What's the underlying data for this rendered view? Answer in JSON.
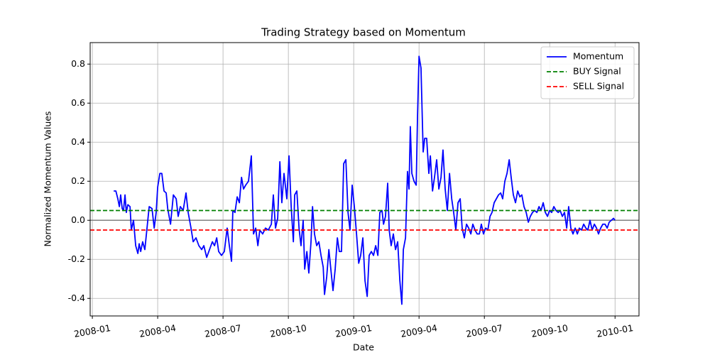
{
  "chart_data": {
    "type": "line",
    "title": "Trading Strategy based on Momentum",
    "xlabel": "Date",
    "ylabel": "Normalized Momentum Values",
    "xlim": [
      -0.1,
      25.1
    ],
    "xticks": [
      {
        "value": 0,
        "label": "2008-01"
      },
      {
        "value": 3,
        "label": "2008-04"
      },
      {
        "value": 6,
        "label": "2008-07"
      },
      {
        "value": 9,
        "label": "2008-10"
      },
      {
        "value": 12,
        "label": "2009-01"
      },
      {
        "value": 15,
        "label": "2009-04"
      },
      {
        "value": 18,
        "label": "2009-07"
      },
      {
        "value": 21,
        "label": "2009-10"
      },
      {
        "value": 24,
        "label": "2010-01"
      }
    ],
    "ylim": [
      -0.49,
      0.91
    ],
    "yticks": [
      -0.4,
      -0.2,
      {
        "value": 0,
        "label": "0.0"
      },
      0.2,
      0.4,
      0.6,
      0.8
    ],
    "grid": true,
    "legend": "upper right",
    "x": [
      0.98,
      1.08,
      1.17,
      1.24,
      1.3,
      1.37,
      1.43,
      1.5,
      1.56,
      1.63,
      1.73,
      1.79,
      1.89,
      1.99,
      2.09,
      2.15,
      2.22,
      2.31,
      2.41,
      2.51,
      2.61,
      2.74,
      2.84,
      2.93,
      3.0,
      3.1,
      3.19,
      3.29,
      3.39,
      3.46,
      3.59,
      3.72,
      3.85,
      3.94,
      4.04,
      4.17,
      4.3,
      4.4,
      4.53,
      4.63,
      4.76,
      4.89,
      5.02,
      5.12,
      5.25,
      5.38,
      5.51,
      5.61,
      5.71,
      5.8,
      5.93,
      6.06,
      6.19,
      6.29,
      6.39,
      6.45,
      6.55,
      6.65,
      6.75,
      6.85,
      6.94,
      7.04,
      7.17,
      7.3,
      7.4,
      7.5,
      7.6,
      7.69,
      7.82,
      7.95,
      8.08,
      8.22,
      8.31,
      8.41,
      8.51,
      8.61,
      8.7,
      8.8,
      8.93,
      9.03,
      9.13,
      9.23,
      9.29,
      9.39,
      9.49,
      9.58,
      9.68,
      9.75,
      9.85,
      9.94,
      10.04,
      10.11,
      10.2,
      10.3,
      10.4,
      10.5,
      10.6,
      10.66,
      10.76,
      10.86,
      10.95,
      11.05,
      11.15,
      11.25,
      11.34,
      11.44,
      11.54,
      11.64,
      11.74,
      11.83,
      11.93,
      12.03,
      12.13,
      12.23,
      12.32,
      12.42,
      12.52,
      12.62,
      12.71,
      12.81,
      12.91,
      13.01,
      13.11,
      13.2,
      13.3,
      13.37,
      13.46,
      13.56,
      13.63,
      13.72,
      13.82,
      13.92,
      14.02,
      14.12,
      14.21,
      14.28,
      14.38,
      14.47,
      14.54,
      14.6,
      14.67,
      14.77,
      14.87,
      14.93,
      15.0,
      15.09,
      15.19,
      15.26,
      15.35,
      15.45,
      15.52,
      15.62,
      15.71,
      15.81,
      15.91,
      16.01,
      16.1,
      16.2,
      16.3,
      16.4,
      16.5,
      16.59,
      16.69,
      16.79,
      16.89,
      16.98,
      17.08,
      17.18,
      17.28,
      17.38,
      17.47,
      17.57,
      17.67,
      17.77,
      17.86,
      17.96,
      18.06,
      18.16,
      18.26,
      18.35,
      18.45,
      18.55,
      18.65,
      18.75,
      18.84,
      18.94,
      19.04,
      19.14,
      19.23,
      19.33,
      19.43,
      19.53,
      19.63,
      19.72,
      19.82,
      19.92,
      20.02,
      20.11,
      20.21,
      20.31,
      20.41,
      20.51,
      20.6,
      20.7,
      20.8,
      20.9,
      20.99,
      21.09,
      21.19,
      21.29,
      21.39,
      21.48,
      21.58,
      21.68,
      21.78,
      21.87,
      21.97,
      22.07,
      22.17,
      22.27,
      22.36,
      22.46,
      22.56,
      22.66,
      22.75,
      22.85,
      22.95,
      23.05,
      23.15,
      23.24,
      23.34,
      23.44,
      23.54,
      23.64,
      23.73,
      23.83,
      23.93,
      24.0
    ],
    "series": [
      {
        "name": "Momentum",
        "color": "#0000ff",
        "values": [
          0.15,
          0.15,
          0.11,
          0.07,
          0.13,
          0.06,
          0.05,
          0.13,
          0.04,
          0.08,
          0.07,
          -0.05,
          0.0,
          -0.13,
          -0.17,
          -0.12,
          -0.16,
          -0.11,
          -0.15,
          -0.04,
          0.07,
          0.06,
          -0.04,
          0.04,
          0.17,
          0.24,
          0.24,
          0.15,
          0.14,
          0.06,
          -0.02,
          0.13,
          0.11,
          0.02,
          0.07,
          0.05,
          0.14,
          0.04,
          -0.04,
          -0.11,
          -0.09,
          -0.13,
          -0.15,
          -0.13,
          -0.19,
          -0.15,
          -0.11,
          -0.13,
          -0.09,
          -0.16,
          -0.18,
          -0.16,
          -0.04,
          -0.13,
          -0.21,
          0.05,
          0.04,
          0.12,
          0.09,
          0.22,
          0.16,
          0.18,
          0.2,
          0.33,
          -0.07,
          -0.04,
          -0.13,
          -0.05,
          -0.07,
          -0.04,
          -0.05,
          -0.02,
          0.13,
          -0.04,
          0.01,
          0.3,
          0.09,
          0.24,
          0.11,
          0.33,
          0.07,
          -0.11,
          0.13,
          0.15,
          -0.04,
          -0.13,
          0.0,
          -0.25,
          -0.16,
          -0.27,
          -0.11,
          0.07,
          -0.07,
          -0.13,
          -0.11,
          -0.18,
          -0.24,
          -0.38,
          -0.29,
          -0.15,
          -0.25,
          -0.36,
          -0.25,
          -0.09,
          -0.16,
          -0.16,
          0.29,
          0.31,
          0.04,
          -0.05,
          0.18,
          0.07,
          -0.07,
          -0.22,
          -0.18,
          -0.09,
          -0.31,
          -0.39,
          -0.18,
          -0.16,
          -0.18,
          -0.13,
          -0.18,
          0.04,
          0.05,
          -0.02,
          0.02,
          0.19,
          -0.05,
          -0.13,
          -0.07,
          -0.15,
          -0.11,
          -0.31,
          -0.43,
          -0.15,
          -0.09,
          0.25,
          0.16,
          0.48,
          0.24,
          0.2,
          0.18,
          0.53,
          0.84,
          0.78,
          0.35,
          0.42,
          0.42,
          0.24,
          0.33,
          0.15,
          0.22,
          0.31,
          0.16,
          0.22,
          0.36,
          0.16,
          0.05,
          0.24,
          0.11,
          0.04,
          -0.05,
          0.09,
          0.11,
          -0.04,
          -0.09,
          -0.02,
          -0.04,
          -0.07,
          -0.02,
          -0.05,
          -0.07,
          -0.07,
          -0.02,
          -0.07,
          -0.04,
          -0.05,
          0.02,
          0.04,
          0.09,
          0.11,
          0.13,
          0.14,
          0.11,
          0.2,
          0.24,
          0.31,
          0.22,
          0.13,
          0.09,
          0.15,
          0.12,
          0.13,
          0.07,
          0.04,
          -0.01,
          0.02,
          0.04,
          0.05,
          0.04,
          0.07,
          0.05,
          0.09,
          0.04,
          0.02,
          0.05,
          0.04,
          0.07,
          0.05,
          0.04,
          0.05,
          0.02,
          0.04,
          -0.04,
          0.07,
          -0.04,
          -0.07,
          -0.04,
          -0.07,
          -0.04,
          -0.05,
          -0.02,
          -0.04,
          -0.05,
          0.0,
          -0.05,
          -0.02,
          -0.04,
          -0.07,
          -0.04,
          -0.02,
          -0.02,
          -0.04,
          -0.01,
          0.0,
          0.01,
          0.0
        ]
      }
    ],
    "hlines": [
      {
        "name": "BUY Signal",
        "value": 0.05,
        "color": "#008000",
        "style": "dashed"
      },
      {
        "name": "SELL Signal",
        "value": -0.05,
        "color": "#ff0000",
        "style": "dashed"
      }
    ],
    "zero_line": {
      "value": 0,
      "color": "#808080"
    }
  }
}
